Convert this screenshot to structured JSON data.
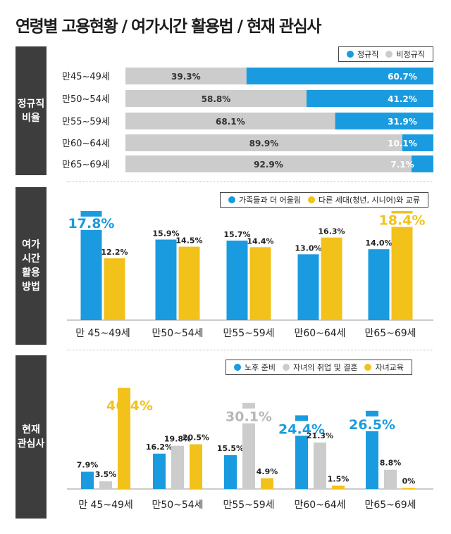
{
  "title": "연령별 고용현황 / 여가시간 활용법 / 현재 관심사",
  "colors": {
    "blue": "#1a9be0",
    "gray": "#cccccc",
    "yellow": "#f2c21b",
    "dark": "#3d3d3d"
  },
  "panels": {
    "employment": "정규직\n비율",
    "leisure": "여가\n시간\n활용\n방법",
    "interest": "현재\n관심사"
  },
  "chart_data": [
    {
      "type": "bar",
      "orientation": "horizontal-stacked",
      "categories": [
        "만45~49세",
        "만50~54세",
        "만55~59세",
        "만60~64세",
        "만65~69세"
      ],
      "series": [
        {
          "name": "비정규직",
          "values": [
            39.3,
            58.8,
            68.1,
            89.9,
            92.9
          ],
          "labels": [
            "39.3%",
            "58.8%",
            "68.1%",
            "89.9%",
            "92.9%"
          ]
        },
        {
          "name": "정규직",
          "values": [
            60.7,
            41.2,
            31.9,
            10.1,
            7.1
          ],
          "labels": [
            "60.7%",
            "41.2%",
            "31.9%",
            "10.1%",
            "7.1%"
          ]
        }
      ],
      "legend": [
        "정규직",
        "비정규직"
      ]
    },
    {
      "type": "bar",
      "categories": [
        "만 45~49세",
        "만50~54세",
        "만55~59세",
        "만60~64세",
        "만65~69세"
      ],
      "series": [
        {
          "name": "가족들과 더 어울림",
          "values": [
            17.8,
            15.9,
            15.7,
            13.0,
            14.0
          ],
          "labels": [
            "17.8%",
            "15.9%",
            "15.7%",
            "13.0%",
            "14.0%"
          ]
        },
        {
          "name": "다른 세대(청년, 시니어)와 교류",
          "values": [
            12.2,
            14.5,
            14.4,
            16.3,
            18.4
          ],
          "labels": [
            "12.2%",
            "14.5%",
            "14.4%",
            "16.3%",
            "18.4%"
          ]
        }
      ]
    },
    {
      "type": "bar",
      "categories": [
        "만 45~49세",
        "만50~54세",
        "만55~59세",
        "만60~64세",
        "만65~69세"
      ],
      "series": [
        {
          "name": "노후 준비",
          "values": [
            7.9,
            16.2,
            15.5,
            24.4,
            26.5
          ],
          "labels": [
            "7.9%",
            "16.2%",
            "15.5%",
            "24.4%",
            "26.5%"
          ]
        },
        {
          "name": "자녀의 취업 및 결혼",
          "values": [
            3.5,
            19.8,
            30.1,
            21.3,
            8.8
          ],
          "labels": [
            "3.5%",
            "19.8%",
            "30.1%",
            "21.3%",
            "8.8%"
          ]
        },
        {
          "name": "자녀교육",
          "values": [
            46.4,
            20.5,
            4.9,
            1.5,
            0
          ],
          "labels": [
            "46.4%",
            "20.5%",
            "4.9%",
            "1.5%",
            "0%"
          ]
        }
      ]
    }
  ]
}
